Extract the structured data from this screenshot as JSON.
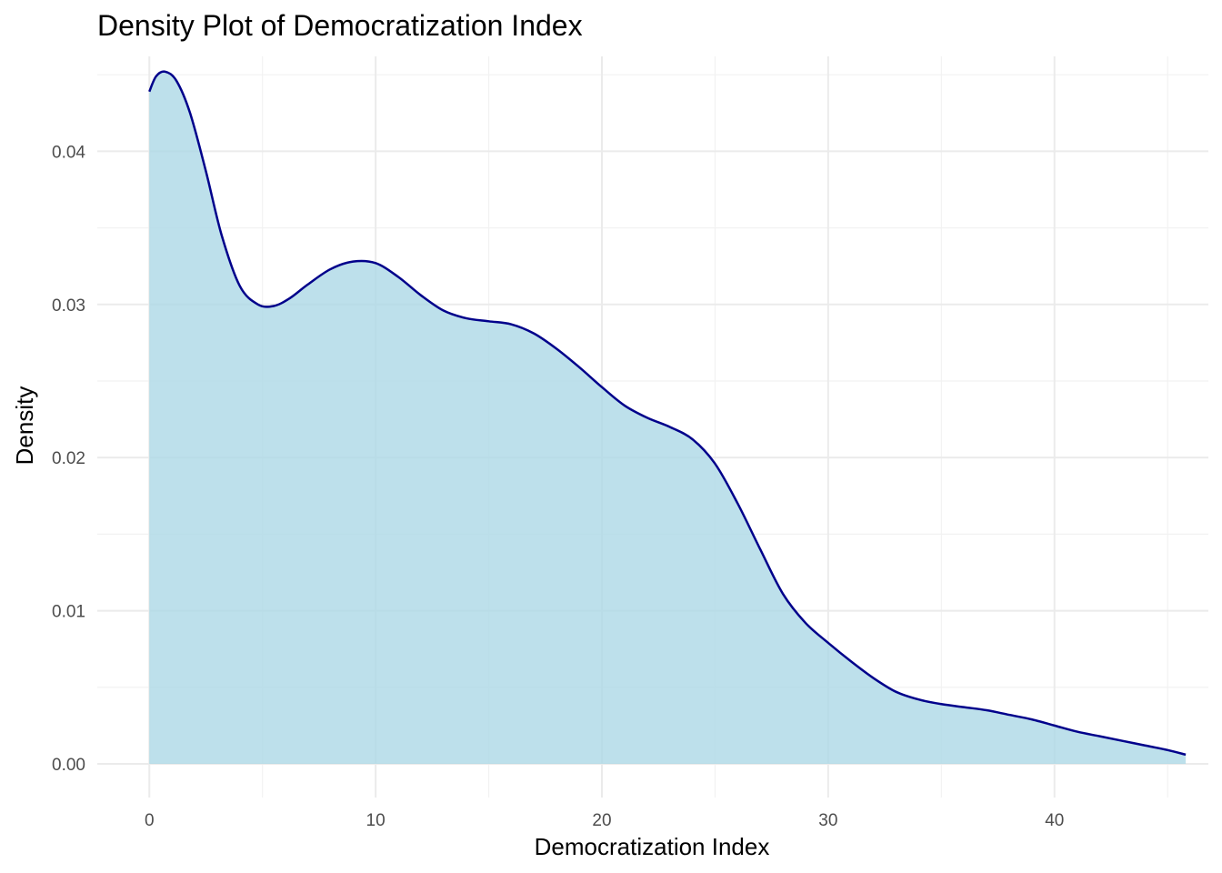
{
  "chart_data": {
    "type": "area",
    "title": "Density Plot of Democratization Index",
    "xlabel": "Democratization Index",
    "ylabel": "Density",
    "xlim": [
      -2.3,
      46.8
    ],
    "ylim": [
      -0.0022,
      0.0462
    ],
    "x_ticks": [
      0,
      10,
      20,
      30,
      40
    ],
    "x_tick_labels": [
      "0",
      "10",
      "20",
      "30",
      "40"
    ],
    "y_ticks": [
      0.0,
      0.01,
      0.02,
      0.03,
      0.04
    ],
    "y_tick_labels": [
      "0.00",
      "0.01",
      "0.02",
      "0.03",
      "0.04"
    ],
    "grid": true,
    "legend": "none",
    "fill_color": "#add8e6",
    "line_color": "#00008b",
    "series": [
      {
        "x": [
          0,
          0.3,
          0.7,
          1.2,
          1.8,
          2.5,
          3.2,
          4.0,
          4.8,
          5.5,
          6.2,
          7.0,
          8.0,
          9.0,
          10.0,
          11.0,
          12.0,
          13.0,
          14.0,
          15.0,
          16.0,
          17.0,
          18.0,
          19.0,
          20.0,
          21.0,
          22.0,
          23.0,
          24.0,
          25.0,
          26.0,
          27.0,
          28.0,
          29.0,
          30.0,
          31.0,
          32.0,
          33.0,
          34.0,
          35.0,
          36.0,
          37.0,
          38.0,
          39.0,
          40.0,
          41.0,
          42.0,
          43.0,
          44.0,
          45.0,
          45.8
        ],
        "y": [
          0.0439,
          0.0449,
          0.0452,
          0.0446,
          0.0425,
          0.0387,
          0.0345,
          0.0312,
          0.03,
          0.0299,
          0.0304,
          0.0313,
          0.0323,
          0.0328,
          0.0327,
          0.0318,
          0.0306,
          0.0296,
          0.0291,
          0.0289,
          0.0287,
          0.0281,
          0.0271,
          0.0259,
          0.0246,
          0.0234,
          0.0226,
          0.022,
          0.0212,
          0.0196,
          0.017,
          0.014,
          0.0111,
          0.0092,
          0.0079,
          0.0067,
          0.0056,
          0.0047,
          0.0042,
          0.0039,
          0.0037,
          0.0035,
          0.0032,
          0.0029,
          0.0025,
          0.0021,
          0.0018,
          0.0015,
          0.0012,
          0.0009,
          0.0006
        ]
      }
    ]
  }
}
